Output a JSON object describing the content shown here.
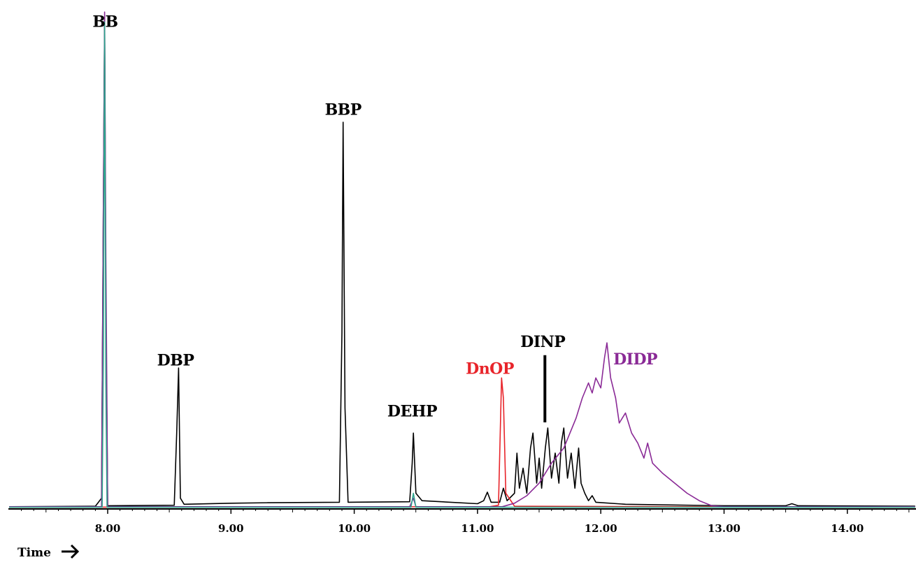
{
  "chart_data": {
    "type": "line",
    "title": "",
    "xlabel": "Time",
    "ylabel": "",
    "xlim": [
      7.2,
      14.55
    ],
    "ylim": [
      0,
      100
    ],
    "grid": false,
    "x_ticks": [
      "8.00",
      "9.00",
      "10.00",
      "11.00",
      "12.00",
      "13.00",
      "14.00"
    ],
    "peak_labels": [
      {
        "text": "BB",
        "x": 7.98,
        "y": 96,
        "color": "#000000"
      },
      {
        "text": "DBP",
        "x": 8.55,
        "y": 28.5,
        "color": "#000000"
      },
      {
        "text": "BBP",
        "x": 9.91,
        "y": 78.5,
        "color": "#000000"
      },
      {
        "text": "DEHP",
        "x": 10.47,
        "y": 18.3,
        "color": "#000000"
      },
      {
        "text": "DnOP",
        "x": 11.1,
        "y": 26.8,
        "color": "#e8242a"
      },
      {
        "text": "DINP",
        "x": 11.53,
        "y": 32.2,
        "color": "#000000"
      },
      {
        "text": "DIDP",
        "x": 12.28,
        "y": 28.7,
        "color": "#8a2a96"
      }
    ],
    "series": [
      {
        "color": "#000000",
        "points": [
          [
            7.2,
            0.3
          ],
          [
            7.9,
            0.4
          ],
          [
            7.95,
            2
          ],
          [
            7.965,
            60
          ],
          [
            7.975,
            98
          ],
          [
            7.985,
            40
          ],
          [
            8.0,
            0.5
          ],
          [
            8.54,
            0.6
          ],
          [
            8.56,
            15
          ],
          [
            8.575,
            28
          ],
          [
            8.59,
            2
          ],
          [
            8.62,
            0.8
          ],
          [
            9.0,
            1.0
          ],
          [
            9.3,
            1.1
          ],
          [
            9.88,
            1.2
          ],
          [
            9.9,
            35
          ],
          [
            9.91,
            77
          ],
          [
            9.925,
            20
          ],
          [
            9.95,
            1.2
          ],
          [
            10.45,
            1.3
          ],
          [
            10.47,
            9
          ],
          [
            10.48,
            15
          ],
          [
            10.5,
            3
          ],
          [
            10.55,
            1.5
          ],
          [
            11.0,
            0.9
          ],
          [
            11.05,
            1.5
          ],
          [
            11.08,
            3.2
          ],
          [
            11.11,
            1.2
          ],
          [
            11.18,
            1.2
          ],
          [
            11.21,
            4
          ],
          [
            11.24,
            1.5
          ],
          [
            11.3,
            3
          ],
          [
            11.32,
            11
          ],
          [
            11.34,
            4
          ],
          [
            11.37,
            8
          ],
          [
            11.4,
            3
          ],
          [
            11.43,
            12
          ],
          [
            11.45,
            15
          ],
          [
            11.48,
            5
          ],
          [
            11.5,
            10
          ],
          [
            11.52,
            4
          ],
          [
            11.55,
            12
          ],
          [
            11.57,
            16
          ],
          [
            11.6,
            6
          ],
          [
            11.63,
            11
          ],
          [
            11.66,
            5
          ],
          [
            11.68,
            13
          ],
          [
            11.7,
            16
          ],
          [
            11.73,
            6
          ],
          [
            11.76,
            11
          ],
          [
            11.79,
            4
          ],
          [
            11.82,
            12
          ],
          [
            11.84,
            5
          ],
          [
            11.87,
            3
          ],
          [
            11.9,
            1.5
          ],
          [
            11.93,
            2.5
          ],
          [
            11.96,
            1.2
          ],
          [
            12.2,
            0.8
          ],
          [
            13.0,
            0.5
          ],
          [
            13.5,
            0.5
          ],
          [
            13.55,
            0.9
          ],
          [
            13.6,
            0.5
          ],
          [
            14.55,
            0.4
          ]
        ]
      },
      {
        "color": "#e8242a",
        "points": [
          [
            7.2,
            0.2
          ],
          [
            11.1,
            0.3
          ],
          [
            11.17,
            0.6
          ],
          [
            11.195,
            26
          ],
          [
            11.21,
            22
          ],
          [
            11.23,
            3
          ],
          [
            11.3,
            0.4
          ],
          [
            14.55,
            0.2
          ]
        ]
      },
      {
        "color": "#8a2a96",
        "points": [
          [
            7.2,
            0.3
          ],
          [
            7.95,
            0.3
          ],
          [
            7.965,
            60
          ],
          [
            7.975,
            99
          ],
          [
            7.985,
            50
          ],
          [
            8.0,
            0.3
          ],
          [
            10.45,
            0.3
          ],
          [
            10.48,
            2
          ],
          [
            10.5,
            0.3
          ],
          [
            11.2,
            0.3
          ],
          [
            11.3,
            1
          ],
          [
            11.4,
            2.5
          ],
          [
            11.5,
            5
          ],
          [
            11.6,
            9
          ],
          [
            11.7,
            12
          ],
          [
            11.75,
            15
          ],
          [
            11.8,
            18
          ],
          [
            11.85,
            22
          ],
          [
            11.9,
            25
          ],
          [
            11.93,
            23
          ],
          [
            11.96,
            26
          ],
          [
            12.0,
            24
          ],
          [
            12.03,
            30
          ],
          [
            12.05,
            33
          ],
          [
            12.08,
            26
          ],
          [
            12.12,
            22
          ],
          [
            12.15,
            17
          ],
          [
            12.2,
            19
          ],
          [
            12.25,
            15
          ],
          [
            12.3,
            13
          ],
          [
            12.35,
            10
          ],
          [
            12.38,
            13
          ],
          [
            12.42,
            9
          ],
          [
            12.5,
            7
          ],
          [
            12.6,
            5
          ],
          [
            12.7,
            3
          ],
          [
            12.8,
            1.5
          ],
          [
            12.9,
            0.5
          ],
          [
            13.0,
            0.3
          ],
          [
            14.55,
            0.3
          ]
        ]
      },
      {
        "color": "#2ea58c",
        "points": [
          [
            7.2,
            0.2
          ],
          [
            7.955,
            0.2
          ],
          [
            7.965,
            30
          ],
          [
            7.975,
            97
          ],
          [
            7.985,
            25
          ],
          [
            7.995,
            0.2
          ],
          [
            10.46,
            0.2
          ],
          [
            10.48,
            3
          ],
          [
            10.5,
            0.2
          ],
          [
            14.55,
            0.2
          ]
        ]
      }
    ]
  }
}
